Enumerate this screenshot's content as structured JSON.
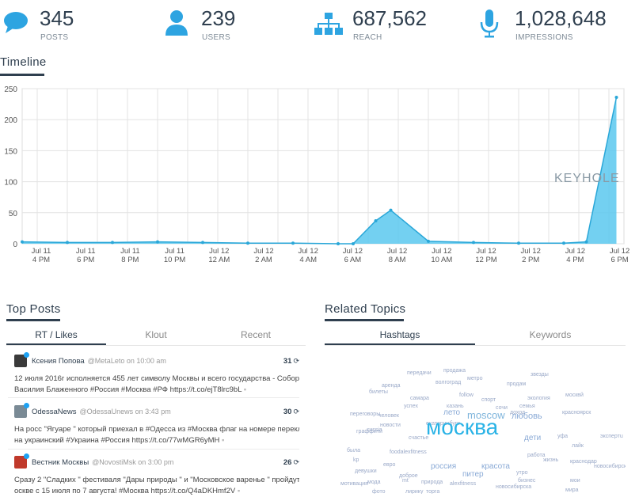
{
  "stats": [
    {
      "value": "345",
      "label": "POSTS",
      "icon": "speech-bubble-icon"
    },
    {
      "value": "239",
      "label": "USERS",
      "icon": "user-icon"
    },
    {
      "value": "687,562",
      "label": "REACH",
      "icon": "sitemap-icon"
    },
    {
      "value": "1,028,648",
      "label": "IMPRESSIONS",
      "icon": "microphone-icon"
    }
  ],
  "timeline": {
    "title": "Timeline",
    "watermark": "KEYHOLE"
  },
  "chart_data": {
    "type": "area",
    "title": "",
    "xlabel": "",
    "ylabel": "",
    "ylim": [
      0,
      250
    ],
    "yticks": [
      0,
      50,
      100,
      150,
      200,
      250
    ],
    "grid": true,
    "color": "#5bc8ef",
    "xtick_labels": [
      [
        "Jul 11",
        "4 PM"
      ],
      [
        "Jul 11",
        "6 PM"
      ],
      [
        "Jul 11",
        "8 PM"
      ],
      [
        "Jul 11",
        "10 PM"
      ],
      [
        "Jul 12",
        "12 AM"
      ],
      [
        "Jul 12",
        "2 AM"
      ],
      [
        "Jul 12",
        "4 AM"
      ],
      [
        "Jul 12",
        "6 AM"
      ],
      [
        "Jul 12",
        "8 AM"
      ],
      [
        "Jul 12",
        "10 AM"
      ],
      [
        "Jul 12",
        "12 PM"
      ],
      [
        "Jul 12",
        "2 PM"
      ],
      [
        "Jul 12",
        "4 PM"
      ],
      [
        "Jul 12",
        "6 PM"
      ]
    ],
    "x_hours": [
      15,
      18,
      21,
      24,
      27,
      30,
      33,
      36,
      37,
      38.5,
      39.5,
      42,
      45,
      48,
      51,
      52.5,
      54.5
    ],
    "y": [
      3,
      2,
      2,
      3,
      2,
      1,
      1,
      0,
      0,
      37,
      54,
      4,
      2,
      1,
      1,
      3,
      236
    ]
  },
  "top_posts": {
    "title": "Top Posts",
    "tabs": [
      "RT / Likes",
      "Klout",
      "Recent"
    ],
    "posts": [
      {
        "name": "Ксения Попова",
        "handle": "@MetaLeto on 10:00 am",
        "count": "31",
        "line1": "12 июля 2016г исполняется 455 лет символу Москвы и всего государства - Собору",
        "line2": "Василия Блаженного #Россия #Москва #РФ https://t.co/ejT8lrc9bL"
      },
      {
        "name": "OdessaNews",
        "handle": "@OdessaUnews on 3:43 pm",
        "count": "30",
        "line1": "На росс \"Ягуаре \" который приехал в #Одесса из #Москва флаг на номере переклеен",
        "line2": "на украинский #Украина #Россия https://t.co/77wMGR6yMH"
      },
      {
        "name": "Вестник Москвы",
        "handle": "@NovostiMsk on 3:00 pm",
        "count": "26",
        "line1": "Сразу 2 \"Сладких \" фестиваля \"Дары природы \" и \"Московское варенье \" пройдут в М",
        "line2": "оскве с 15 июля по 7 августа!  #Москва https://t.co/Q4aDKHmf2V"
      }
    ]
  },
  "related_topics": {
    "title": "Related Topics",
    "tabs": [
      "Hashtags",
      "Keywords"
    ],
    "words": [
      "передачи",
      "продажа",
      "метро",
      "арендa",
      "волгоград",
      "продам",
      "звезды",
      "билеты",
      "follow",
      "спорт",
      "экология",
      "москвй",
      "самара",
      "сочи",
      "семья",
      "успех",
      "казань",
      "доход",
      "красноярск",
      "переговоры",
      "человек",
      "новости",
      "лето",
      "moscow",
      "любовь",
      "екатеринбург",
      "russia",
      "граффити",
      "счастье",
      "уфа",
      "дети",
      "лайк",
      "экспертu",
      "была",
      "foodalexfitness",
      "работа",
      "москва",
      "жизнь",
      "краснодар",
      "kp",
      "евро",
      "новосибирск",
      "россия",
      "красота",
      "девушки",
      "доброе",
      "утро",
      "мода",
      "mt",
      "питер",
      "природа",
      "alexfitness",
      "новосибирска",
      "бизнес",
      "мои",
      "мотивация",
      "фото",
      "торга",
      "лирику",
      "мирa"
    ]
  }
}
